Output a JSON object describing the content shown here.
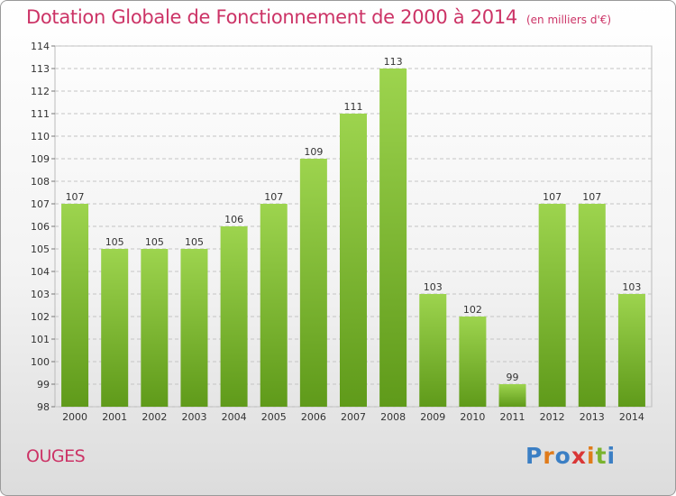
{
  "header": {
    "title": "Dotation Globale de Fonctionnement de 2000 à 2014",
    "subtitle": "(en milliers d'€)"
  },
  "footer": {
    "commune": "OUGES",
    "logo": [
      "P",
      "r",
      "o",
      "x",
      "i",
      "t",
      "i"
    ],
    "logo_colors": [
      "#3b7fc4",
      "#e07b1a",
      "#3b7fc4",
      "#d93636",
      "#e07b1a",
      "#7ab32e",
      "#3b7fc4"
    ]
  },
  "colors": {
    "bar_light": "#9dd44e",
    "bar_dark": "#5f9a1a",
    "title": "#cc3366"
  },
  "chart_data": {
    "type": "bar",
    "title": "Dotation Globale de Fonctionnement de 2000 à 2014",
    "ylim": [
      98,
      114
    ],
    "yticks": [
      98,
      99,
      100,
      101,
      102,
      103,
      104,
      105,
      106,
      107,
      108,
      109,
      110,
      111,
      112,
      113,
      114
    ],
    "categories": [
      "2000",
      "2001",
      "2002",
      "2003",
      "2004",
      "2005",
      "2006",
      "2007",
      "2008",
      "2009",
      "2010",
      "2011",
      "2012",
      "2013",
      "2014"
    ],
    "values": [
      107,
      105,
      105,
      105,
      106,
      107,
      109,
      111,
      113,
      103,
      102,
      99,
      107,
      107,
      103
    ],
    "grid": true
  }
}
